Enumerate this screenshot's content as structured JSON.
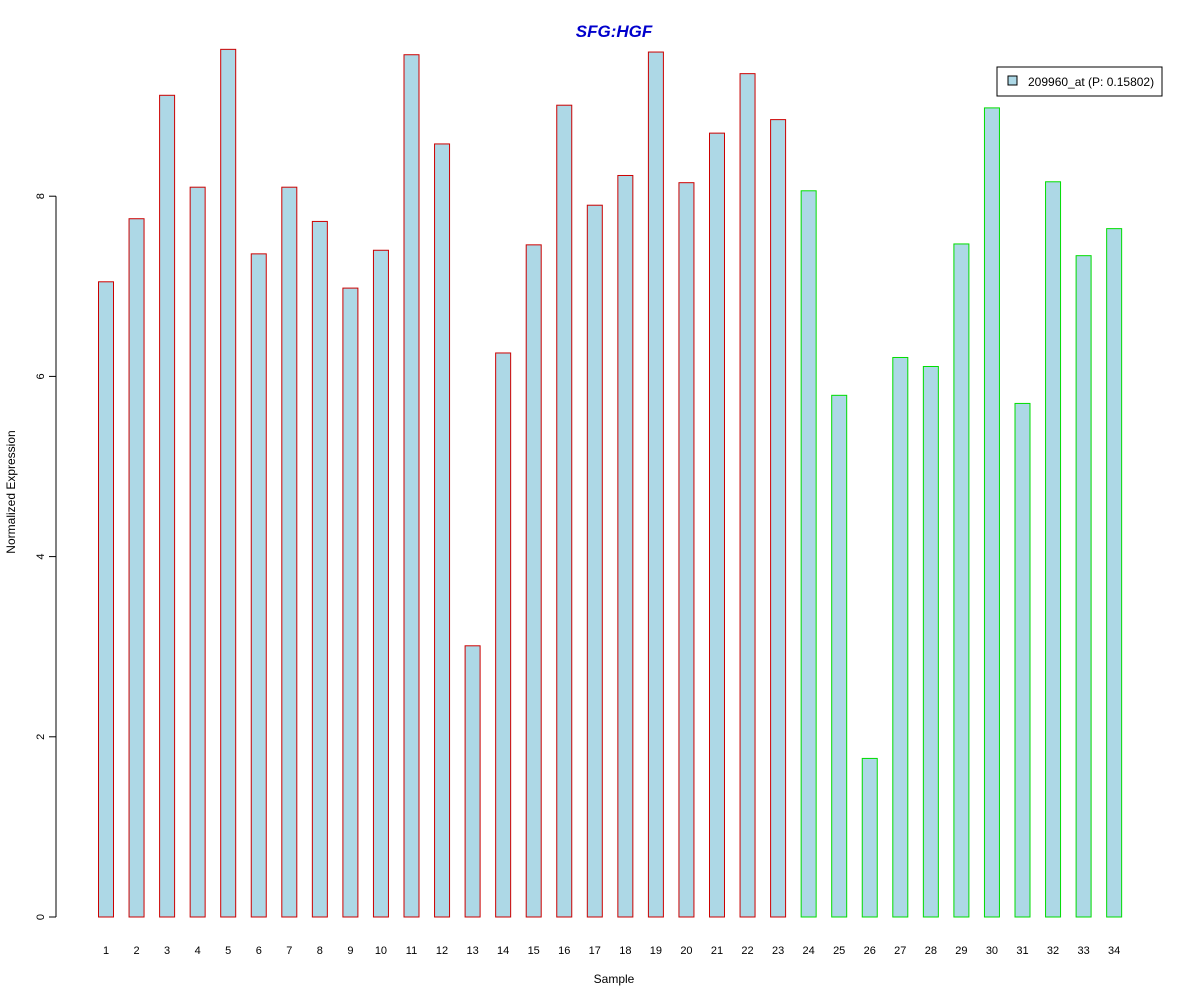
{
  "chart_data": {
    "type": "bar",
    "title": "SFG:HGF",
    "xlabel": "Sample",
    "ylabel": "Normalized Expression",
    "categories": [
      "1",
      "2",
      "3",
      "4",
      "5",
      "6",
      "7",
      "8",
      "9",
      "10",
      "11",
      "12",
      "13",
      "14",
      "15",
      "16",
      "17",
      "18",
      "19",
      "20",
      "21",
      "22",
      "23",
      "24",
      "25",
      "26",
      "27",
      "28",
      "29",
      "30",
      "31",
      "32",
      "33",
      "34"
    ],
    "series": [
      {
        "name": "209960_at (P: 0.15802)",
        "values": [
          7.05,
          7.75,
          9.12,
          8.1,
          9.63,
          7.36,
          8.1,
          7.72,
          6.98,
          7.4,
          9.57,
          8.58,
          3.01,
          6.26,
          7.46,
          9.01,
          7.9,
          8.23,
          9.6,
          8.15,
          8.7,
          9.36,
          8.85,
          8.06,
          5.79,
          1.76,
          6.21,
          6.11,
          7.47,
          8.98,
          5.7,
          8.16,
          7.34,
          7.64
        ]
      }
    ],
    "group_colors": [
      "#cc0000",
      "#cc0000",
      "#cc0000",
      "#cc0000",
      "#cc0000",
      "#cc0000",
      "#cc0000",
      "#cc0000",
      "#cc0000",
      "#cc0000",
      "#cc0000",
      "#cc0000",
      "#cc0000",
      "#cc0000",
      "#cc0000",
      "#cc0000",
      "#cc0000",
      "#cc0000",
      "#cc0000",
      "#cc0000",
      "#cc0000",
      "#cc0000",
      "#cc0000",
      "#00dd00",
      "#00dd00",
      "#00dd00",
      "#00dd00",
      "#00dd00",
      "#00dd00",
      "#00dd00",
      "#00dd00",
      "#00dd00",
      "#00dd00",
      "#00dd00"
    ],
    "bar_fill": "#add8e6",
    "title_color": "#0000cc",
    "ylim": [
      0,
      10
    ],
    "yticks": [
      "0",
      "2",
      "4",
      "6",
      "8"
    ],
    "legend_position": "top-right",
    "grid": false
  }
}
